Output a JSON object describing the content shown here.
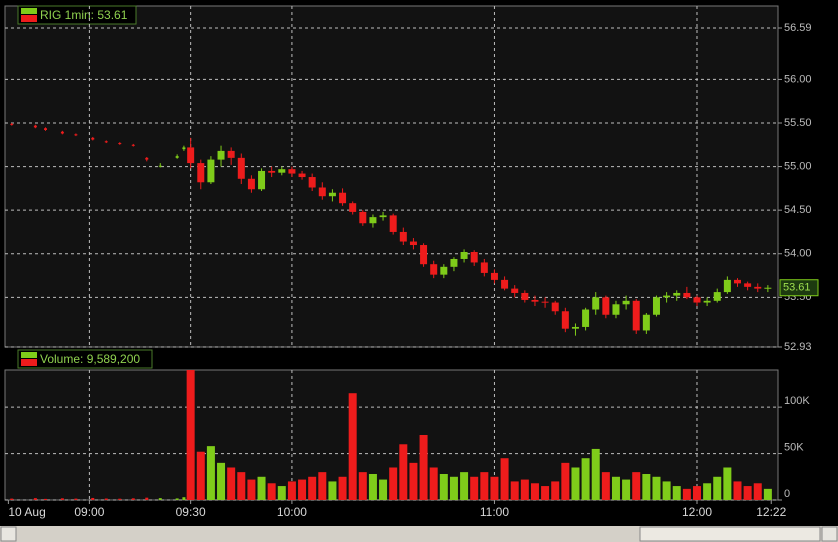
{
  "chart_data": [
    {
      "type": "candlestick",
      "title": "RIG 1min: 53.61",
      "up_color": "#7fcc1a",
      "down_color": "#ee1c1c",
      "last_price": 53.61,
      "x": [
        "08:37",
        "08:44",
        "08:47",
        "08:52",
        "08:56",
        "09:01",
        "09:05",
        "09:09",
        "09:13",
        "09:17",
        "09:21",
        "09:26",
        "09:28",
        "09:30",
        "09:33",
        "09:36",
        "09:39",
        "09:42",
        "09:45",
        "09:48",
        "09:51",
        "09:54",
        "09:57",
        "10:00",
        "10:03",
        "10:06",
        "10:09",
        "10:12",
        "10:15",
        "10:18",
        "10:21",
        "10:24",
        "10:27",
        "10:30",
        "10:33",
        "10:36",
        "10:39",
        "10:42",
        "10:45",
        "10:48",
        "10:51",
        "10:54",
        "10:57",
        "11:00",
        "11:03",
        "11:06",
        "11:09",
        "11:12",
        "11:15",
        "11:18",
        "11:21",
        "11:24",
        "11:27",
        "11:30",
        "11:33",
        "11:36",
        "11:39",
        "11:42",
        "11:45",
        "11:48",
        "11:51",
        "11:54",
        "11:57",
        "12:00",
        "12:03",
        "12:06",
        "12:09",
        "12:12",
        "12:15",
        "12:18",
        "12:21"
      ],
      "ohlc": [
        [
          55.49,
          55.5,
          55.47,
          55.48
        ],
        [
          55.47,
          55.48,
          55.44,
          55.45
        ],
        [
          55.44,
          55.45,
          55.41,
          55.42
        ],
        [
          55.4,
          55.41,
          55.37,
          55.38
        ],
        [
          55.37,
          55.38,
          55.35,
          55.36
        ],
        [
          55.33,
          55.34,
          55.3,
          55.31
        ],
        [
          55.29,
          55.3,
          55.27,
          55.28
        ],
        [
          55.27,
          55.28,
          55.25,
          55.26
        ],
        [
          55.25,
          55.26,
          55.23,
          55.24
        ],
        [
          55.1,
          55.11,
          55.06,
          55.08
        ],
        [
          55.0,
          55.04,
          54.99,
          55.01
        ],
        [
          55.1,
          55.14,
          55.09,
          55.12
        ],
        [
          55.2,
          55.24,
          55.18,
          55.22
        ],
        [
          55.22,
          55.33,
          54.98,
          55.04
        ],
        [
          55.04,
          55.08,
          54.74,
          54.82
        ],
        [
          54.82,
          55.12,
          54.8,
          55.08
        ],
        [
          55.08,
          55.24,
          55.0,
          55.18
        ],
        [
          55.18,
          55.22,
          55.02,
          55.1
        ],
        [
          55.1,
          55.15,
          54.8,
          54.86
        ],
        [
          54.86,
          54.9,
          54.7,
          54.74
        ],
        [
          54.74,
          54.98,
          54.72,
          54.95
        ],
        [
          54.95,
          55.0,
          54.88,
          54.93
        ],
        [
          54.93,
          55.0,
          54.9,
          54.97
        ],
        [
          54.97,
          55.0,
          54.88,
          54.92
        ],
        [
          54.92,
          54.95,
          54.85,
          54.88
        ],
        [
          54.88,
          54.92,
          54.72,
          54.76
        ],
        [
          54.76,
          54.82,
          54.62,
          54.66
        ],
        [
          54.66,
          54.74,
          54.6,
          54.7
        ],
        [
          54.7,
          54.75,
          54.55,
          54.58
        ],
        [
          54.58,
          54.6,
          54.45,
          54.48
        ],
        [
          54.48,
          54.5,
          54.32,
          54.35
        ],
        [
          54.35,
          54.45,
          54.3,
          54.42
        ],
        [
          54.42,
          54.48,
          54.38,
          54.44
        ],
        [
          54.44,
          54.46,
          54.22,
          54.25
        ],
        [
          54.25,
          54.3,
          54.1,
          54.14
        ],
        [
          54.14,
          54.18,
          54.05,
          54.1
        ],
        [
          54.1,
          54.12,
          53.85,
          53.88
        ],
        [
          53.88,
          53.92,
          53.72,
          53.76
        ],
        [
          53.76,
          53.88,
          53.72,
          53.85
        ],
        [
          53.85,
          53.96,
          53.8,
          53.94
        ],
        [
          53.94,
          54.05,
          53.9,
          54.02
        ],
        [
          54.02,
          54.04,
          53.86,
          53.9
        ],
        [
          53.9,
          53.94,
          53.74,
          53.78
        ],
        [
          53.78,
          53.82,
          53.66,
          53.7
        ],
        [
          53.7,
          53.74,
          53.58,
          53.6
        ],
        [
          53.6,
          53.64,
          53.5,
          53.55
        ],
        [
          53.55,
          53.58,
          53.44,
          53.47
        ],
        [
          53.47,
          53.52,
          53.4,
          53.45
        ],
        [
          53.45,
          53.5,
          53.38,
          53.44
        ],
        [
          53.44,
          53.46,
          53.3,
          53.34
        ],
        [
          53.34,
          53.38,
          53.1,
          53.14
        ],
        [
          53.14,
          53.2,
          53.06,
          53.16
        ],
        [
          53.16,
          53.38,
          53.12,
          53.36
        ],
        [
          53.36,
          53.56,
          53.3,
          53.5
        ],
        [
          53.5,
          53.52,
          53.26,
          53.3
        ],
        [
          53.3,
          53.46,
          53.26,
          53.42
        ],
        [
          53.42,
          53.52,
          53.36,
          53.46
        ],
        [
          53.46,
          53.48,
          53.08,
          53.12
        ],
        [
          53.12,
          53.32,
          53.08,
          53.3
        ],
        [
          53.3,
          53.52,
          53.28,
          53.5
        ],
        [
          53.5,
          53.56,
          53.44,
          53.52
        ],
        [
          53.52,
          53.58,
          53.46,
          53.55
        ],
        [
          53.55,
          53.62,
          53.48,
          53.5
        ],
        [
          53.5,
          53.52,
          53.4,
          53.44
        ],
        [
          53.44,
          53.5,
          53.4,
          53.46
        ],
        [
          53.46,
          53.6,
          53.44,
          53.56
        ],
        [
          53.56,
          53.74,
          53.54,
          53.7
        ],
        [
          53.7,
          53.72,
          53.62,
          53.66
        ],
        [
          53.66,
          53.68,
          53.58,
          53.62
        ],
        [
          53.62,
          53.66,
          53.56,
          53.6
        ],
        [
          53.6,
          53.64,
          53.56,
          53.61
        ]
      ],
      "xlim": [
        "08:35",
        "12:24"
      ],
      "xticks": [
        {
          "value": "08:36",
          "label": "10 Aug"
        },
        "09:00",
        "09:30",
        "10:00",
        "11:00",
        "12:00",
        "12:22"
      ],
      "ylim": [
        52.93,
        56.59
      ],
      "yticks": [
        52.93,
        {
          "value": 53.5,
          "label": "53.50"
        },
        {
          "value": 54,
          "label": "54.00"
        },
        {
          "value": 54.5,
          "label": "54.50"
        },
        {
          "value": 55,
          "label": "55.00"
        },
        {
          "value": 55.5,
          "label": "55.50"
        },
        {
          "value": 56,
          "label": "56.00"
        },
        56.59
      ],
      "grid": true
    },
    {
      "type": "bar",
      "title": "Volume: 9,589,200",
      "x": [
        "08:37",
        "08:44",
        "08:47",
        "08:52",
        "08:56",
        "09:01",
        "09:05",
        "09:09",
        "09:13",
        "09:17",
        "09:21",
        "09:26",
        "09:28",
        "09:30",
        "09:33",
        "09:36",
        "09:39",
        "09:42",
        "09:45",
        "09:48",
        "09:51",
        "09:54",
        "09:57",
        "10:00",
        "10:03",
        "10:06",
        "10:09",
        "10:12",
        "10:15",
        "10:18",
        "10:21",
        "10:24",
        "10:27",
        "10:30",
        "10:33",
        "10:36",
        "10:39",
        "10:42",
        "10:45",
        "10:48",
        "10:51",
        "10:54",
        "10:57",
        "11:00",
        "11:03",
        "11:06",
        "11:09",
        "11:12",
        "11:15",
        "11:18",
        "11:21",
        "11:24",
        "11:27",
        "11:30",
        "11:33",
        "11:36",
        "11:39",
        "11:42",
        "11:45",
        "11:48",
        "11:51",
        "11:54",
        "11:57",
        "12:00",
        "12:03",
        "12:06",
        "12:09",
        "12:12",
        "12:15",
        "12:18",
        "12:21"
      ],
      "values": [
        1500,
        2000,
        1200,
        1800,
        1500,
        2200,
        1600,
        1400,
        1800,
        2500,
        2000,
        1700,
        3000,
        140000,
        52000,
        58000,
        40000,
        35000,
        30000,
        22000,
        25000,
        18000,
        15000,
        20000,
        22000,
        25000,
        30000,
        20000,
        25000,
        115000,
        30000,
        28000,
        22000,
        35000,
        60000,
        40000,
        70000,
        35000,
        28000,
        25000,
        30000,
        25000,
        30000,
        25000,
        45000,
        20000,
        22000,
        18000,
        15000,
        20000,
        40000,
        35000,
        45000,
        55000,
        30000,
        25000,
        22000,
        30000,
        28000,
        25000,
        20000,
        15000,
        12000,
        15000,
        18000,
        25000,
        35000,
        20000,
        15000,
        18000,
        12000
      ],
      "ylim": [
        0,
        140000
      ],
      "yticks": [
        0,
        {
          "value": 50000,
          "label": "50K"
        },
        {
          "value": 100000,
          "label": "100K"
        }
      ],
      "grid": true
    }
  ]
}
